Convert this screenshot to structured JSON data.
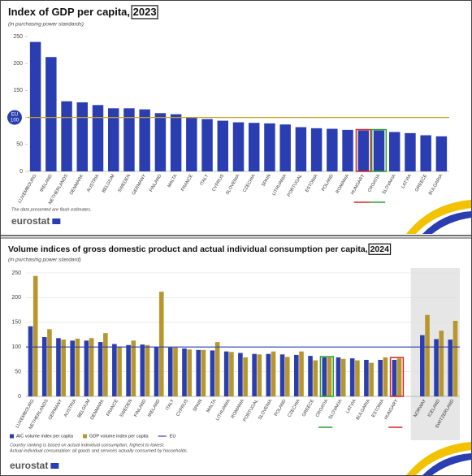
{
  "chart_data": [
    {
      "type": "bar",
      "title": "Index of GDP per capita,",
      "title_year": "2023",
      "subtitle": "(in purchasing power standards)",
      "categories": [
        "LUXEMBOURG",
        "IRELAND",
        "NETHERLANDS",
        "DENMARK",
        "AUSTRIA",
        "BELGIUM",
        "SWEDEN",
        "GERMANY",
        "FINLAND",
        "MALTA",
        "FRANCE",
        "ITALY",
        "CYPRUS",
        "SLOVENIA",
        "CZECHIA",
        "SPAIN",
        "LITHUANIA",
        "PORTUGAL",
        "ESTONIA",
        "POLAND",
        "ROMANIA",
        "HUNGARY",
        "CROATIA",
        "SLOVAKIA",
        "LATVIA",
        "GREECE",
        "BULGARIA"
      ],
      "values": [
        240,
        212,
        130,
        128,
        123,
        117,
        117,
        115,
        108,
        106,
        100,
        97,
        94,
        91,
        90,
        89,
        87,
        82,
        80,
        79,
        77,
        76,
        76,
        73,
        71,
        67,
        65
      ],
      "color": "#2a3eb1",
      "ylim": [
        0,
        250
      ],
      "yticks": [
        0,
        50,
        100,
        150,
        200,
        250
      ],
      "grid": false,
      "reference": {
        "label": "EU",
        "value": 100,
        "color": "#c9a227",
        "badge": true
      },
      "highlights": [
        {
          "category": "HUNGARY",
          "color": "#d62728"
        },
        {
          "category": "CROATIA",
          "color": "#2ca02c"
        }
      ],
      "notes": [
        "The data presented are flash estimates."
      ],
      "source": "eurostat",
      "legend": false
    },
    {
      "type": "grouped-bar",
      "title": "Volume indices of gross domestic product and actual individual consumption per capita,",
      "title_year": "2024",
      "subtitle": "(in purchasing power standard)",
      "categories": [
        "LUXEMBOURG",
        "NETHERLANDS",
        "GERMANY",
        "AUSTRIA",
        "BELGIUM",
        "DENMARK",
        "FRANCE",
        "SWEDEN",
        "FINLAND",
        "IRELAND",
        "ITALY",
        "CYPRUS",
        "SPAIN",
        "MALTA",
        "LITHUANIA",
        "ROMANIA",
        "PORTUGAL",
        "SLOVENIA",
        "POLAND",
        "CZECHIA",
        "GREECE",
        "CROATIA",
        "SLOVAKIA",
        "LATVIA",
        "BULGARIA",
        "ESTONIA",
        "HUNGARY",
        null,
        "NORWAY",
        "ICELAND",
        "SWITZERLAND"
      ],
      "series": [
        {
          "name": "AIC volume index per capita",
          "color": "#2a3eb1",
          "values": [
            142,
            120,
            118,
            113,
            113,
            110,
            106,
            104,
            105,
            100,
            99,
            97,
            94,
            93,
            91,
            88,
            86,
            86,
            85,
            84,
            82,
            79,
            79,
            77,
            74,
            74,
            74,
            null,
            124,
            116,
            115
          ]
        },
        {
          "name": "GDP volume index per capita",
          "color": "#b8962e",
          "values": [
            244,
            136,
            115,
            117,
            118,
            128,
            101,
            113,
            104,
            212,
            99,
            95,
            94,
            110,
            90,
            79,
            85,
            91,
            80,
            91,
            73,
            79,
            76,
            73,
            68,
            79,
            77,
            null,
            165,
            133,
            153
          ]
        }
      ],
      "ylim": [
        0,
        250
      ],
      "yticks": [
        0,
        50,
        100,
        150,
        200,
        250
      ],
      "grid": true,
      "reference": {
        "label": "EU",
        "value": 100,
        "color": "#2a3eb1",
        "badge": false
      },
      "highlights": [
        {
          "category": "CROATIA",
          "color": "#2ca02c"
        },
        {
          "category": "HUNGARY",
          "color": "#d62728"
        }
      ],
      "shade_after_gap": true,
      "notes": [
        "Country ranking is based on actual individual consumption, highest to lowest.",
        "Actual individual consumption: all goods and services actually consumed by households."
      ],
      "source": "eurostat",
      "legend": "bottom-left"
    }
  ]
}
